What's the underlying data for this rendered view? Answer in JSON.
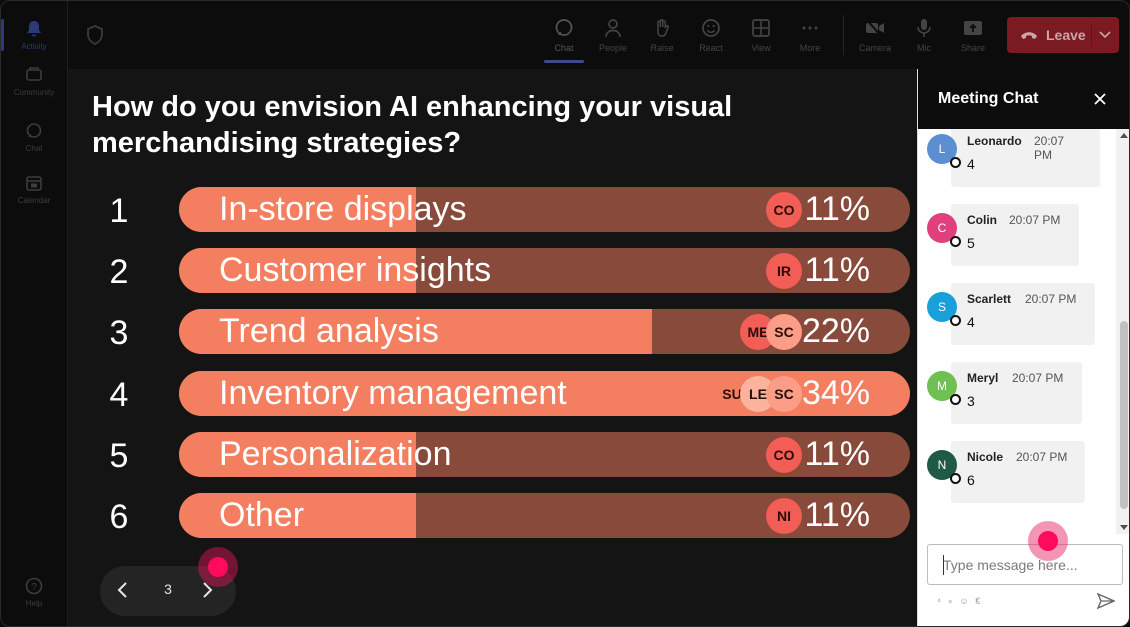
{
  "rail": [
    {
      "label": "Activity",
      "icon": "bell-icon"
    },
    {
      "label": "Community",
      "icon": "community-icon"
    },
    {
      "label": "Chat",
      "icon": "chat-icon"
    },
    {
      "label": "Calendar",
      "icon": "calendar-icon"
    },
    {
      "label": "Help",
      "icon": "help-icon"
    }
  ],
  "toolbar": {
    "chat": "Chat",
    "people": "People",
    "raise": "Raise",
    "react": "React",
    "view": "View",
    "more": "More",
    "camera": "Camera",
    "mic": "Mic",
    "share": "Share",
    "leave": "Leave"
  },
  "poll": {
    "question": "How do you envision AI enhancing your visual merchandising strategies?",
    "options": [
      {
        "num": "1",
        "label": "In-store displays",
        "pct": "11%",
        "value": 11,
        "avatars": [
          "CO"
        ]
      },
      {
        "num": "2",
        "label": "Customer insights",
        "pct": "11%",
        "value": 11,
        "avatars": [
          "IR"
        ]
      },
      {
        "num": "3",
        "label": "Trend analysis",
        "pct": "22%",
        "value": 22,
        "avatars": [
          "ME",
          "SC"
        ]
      },
      {
        "num": "4",
        "label": "Inventory management",
        "pct": "34%",
        "value": 34,
        "avatars": [
          "SU",
          "LE",
          "SC"
        ]
      },
      {
        "num": "5",
        "label": "Personalization",
        "pct": "11%",
        "value": 11,
        "avatars": [
          "CO"
        ]
      },
      {
        "num": "6",
        "label": "Other",
        "pct": "11%",
        "value": 11,
        "avatars": [
          "NI"
        ]
      }
    ],
    "page": "3"
  },
  "chat": {
    "title": "Meeting Chat",
    "messages": [
      {
        "initial": "L",
        "name": "Leonardo",
        "time": "20:07 PM",
        "text": "4",
        "color": "#5b8fd1"
      },
      {
        "initial": "C",
        "name": "Colin",
        "time": "20:07 PM",
        "text": "5",
        "color": "#e0407e"
      },
      {
        "initial": "S",
        "name": "Scarlett",
        "time": "20:07 PM",
        "text": "4",
        "color": "#1aa0d8"
      },
      {
        "initial": "M",
        "name": "Meryl",
        "time": "20:07 PM",
        "text": "3",
        "color": "#6fbf52"
      },
      {
        "initial": "N",
        "name": "Nicole",
        "time": "20:07 PM",
        "text": "6",
        "color": "#1f5a44"
      }
    ],
    "placeholder": "Type message here...",
    "format_icons": "⁴ ∘ ☺ €"
  },
  "colors": {
    "bar_fill": "#f47e60",
    "bar_track": "#874a3b",
    "leave": "#7c1a22",
    "accent": "#3d4a8c"
  }
}
